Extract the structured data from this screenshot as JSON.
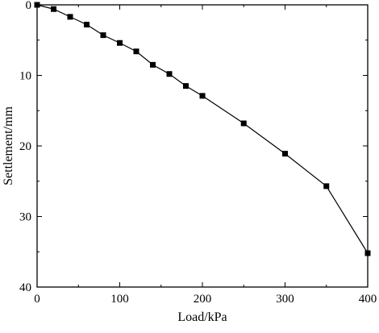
{
  "chart_data": {
    "type": "line",
    "title": "",
    "xlabel": "Load/kPa",
    "ylabel": "Settlement/mm",
    "xlim": [
      0,
      400
    ],
    "ylim": [
      0,
      40
    ],
    "y_inverted": true,
    "x_ticks": [
      "0",
      "100",
      "200",
      "300",
      "400"
    ],
    "y_ticks": [
      "0",
      "10",
      "20",
      "30",
      "40"
    ],
    "grid": false,
    "legend": "none",
    "marker": "square",
    "color": "#000000",
    "series": [
      {
        "x": [
          0,
          20,
          40,
          60,
          80,
          100,
          120,
          140,
          160,
          180,
          200,
          250,
          300,
          350,
          400
        ],
        "y": [
          0,
          0.6,
          1.7,
          2.8,
          4.3,
          5.4,
          6.6,
          8.5,
          9.8,
          11.5,
          12.9,
          16.8,
          21.1,
          25.7,
          35.2
        ]
      }
    ]
  }
}
